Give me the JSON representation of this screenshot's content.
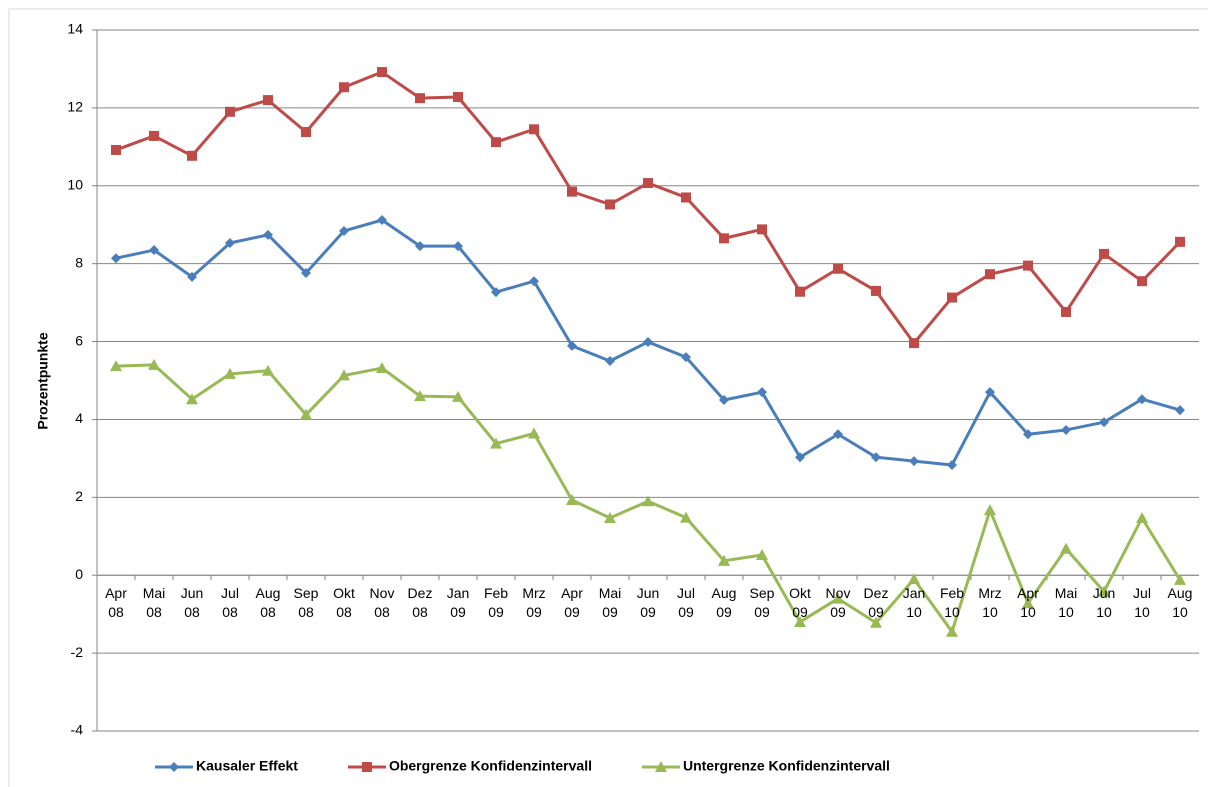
{
  "chart_data": {
    "type": "line",
    "y_axis_label": "Prozentpunkte",
    "categories": [
      "Apr 08",
      "Mai 08",
      "Jun 08",
      "Jul 08",
      "Aug 08",
      "Sep 08",
      "Okt 08",
      "Nov 08",
      "Dez 08",
      "Jan 09",
      "Feb 09",
      "Mrz 09",
      "Apr 09",
      "Mai 09",
      "Jun 09",
      "Jul 09",
      "Aug 09",
      "Sep 09",
      "Okt 09",
      "Nov 09",
      "Dez 09",
      "Jan 10",
      "Feb 10",
      "Mrz 10",
      "Apr 10",
      "Mai 10",
      "Jun 10",
      "Jul 10",
      "Aug 10"
    ],
    "series": [
      {
        "name": "Kausaler Effekt",
        "color": "#4a7ebb",
        "marker": "diamond",
        "values": [
          8.14,
          8.35,
          7.66,
          8.53,
          8.74,
          7.76,
          8.84,
          9.12,
          8.45,
          8.45,
          7.27,
          7.55,
          5.89,
          5.5,
          5.99,
          5.6,
          4.5,
          4.7,
          3.03,
          3.62,
          3.03,
          2.93,
          2.83,
          4.7,
          3.62,
          3.73,
          3.93,
          4.52,
          4.24
        ]
      },
      {
        "name": "Obergrenze Konfidenzintervall",
        "color": "#be4b48",
        "marker": "square",
        "values": [
          10.92,
          11.28,
          10.77,
          11.9,
          12.2,
          11.38,
          12.53,
          12.92,
          12.25,
          12.28,
          11.12,
          11.45,
          9.85,
          9.52,
          10.07,
          9.7,
          8.65,
          8.88,
          7.28,
          7.87,
          7.3,
          5.96,
          7.13,
          7.73,
          7.95,
          6.76,
          8.25,
          7.55,
          8.56
        ]
      },
      {
        "name": "Untergrenze Konfidenzintervall",
        "color": "#98b954",
        "marker": "triangle",
        "values": [
          5.37,
          5.4,
          4.52,
          5.17,
          5.25,
          4.12,
          5.13,
          5.32,
          4.6,
          4.58,
          3.38,
          3.64,
          1.93,
          1.47,
          1.9,
          1.48,
          0.37,
          0.52,
          -1.2,
          -0.6,
          -1.22,
          -0.1,
          -1.45,
          1.67,
          -0.72,
          0.68,
          -0.42,
          1.47,
          -0.12
        ]
      }
    ],
    "ylim": [
      -4,
      14
    ],
    "yticks": [
      -4,
      -2,
      0,
      2,
      4,
      6,
      8,
      10,
      12,
      14
    ],
    "grid": true,
    "legend": "bottom"
  }
}
